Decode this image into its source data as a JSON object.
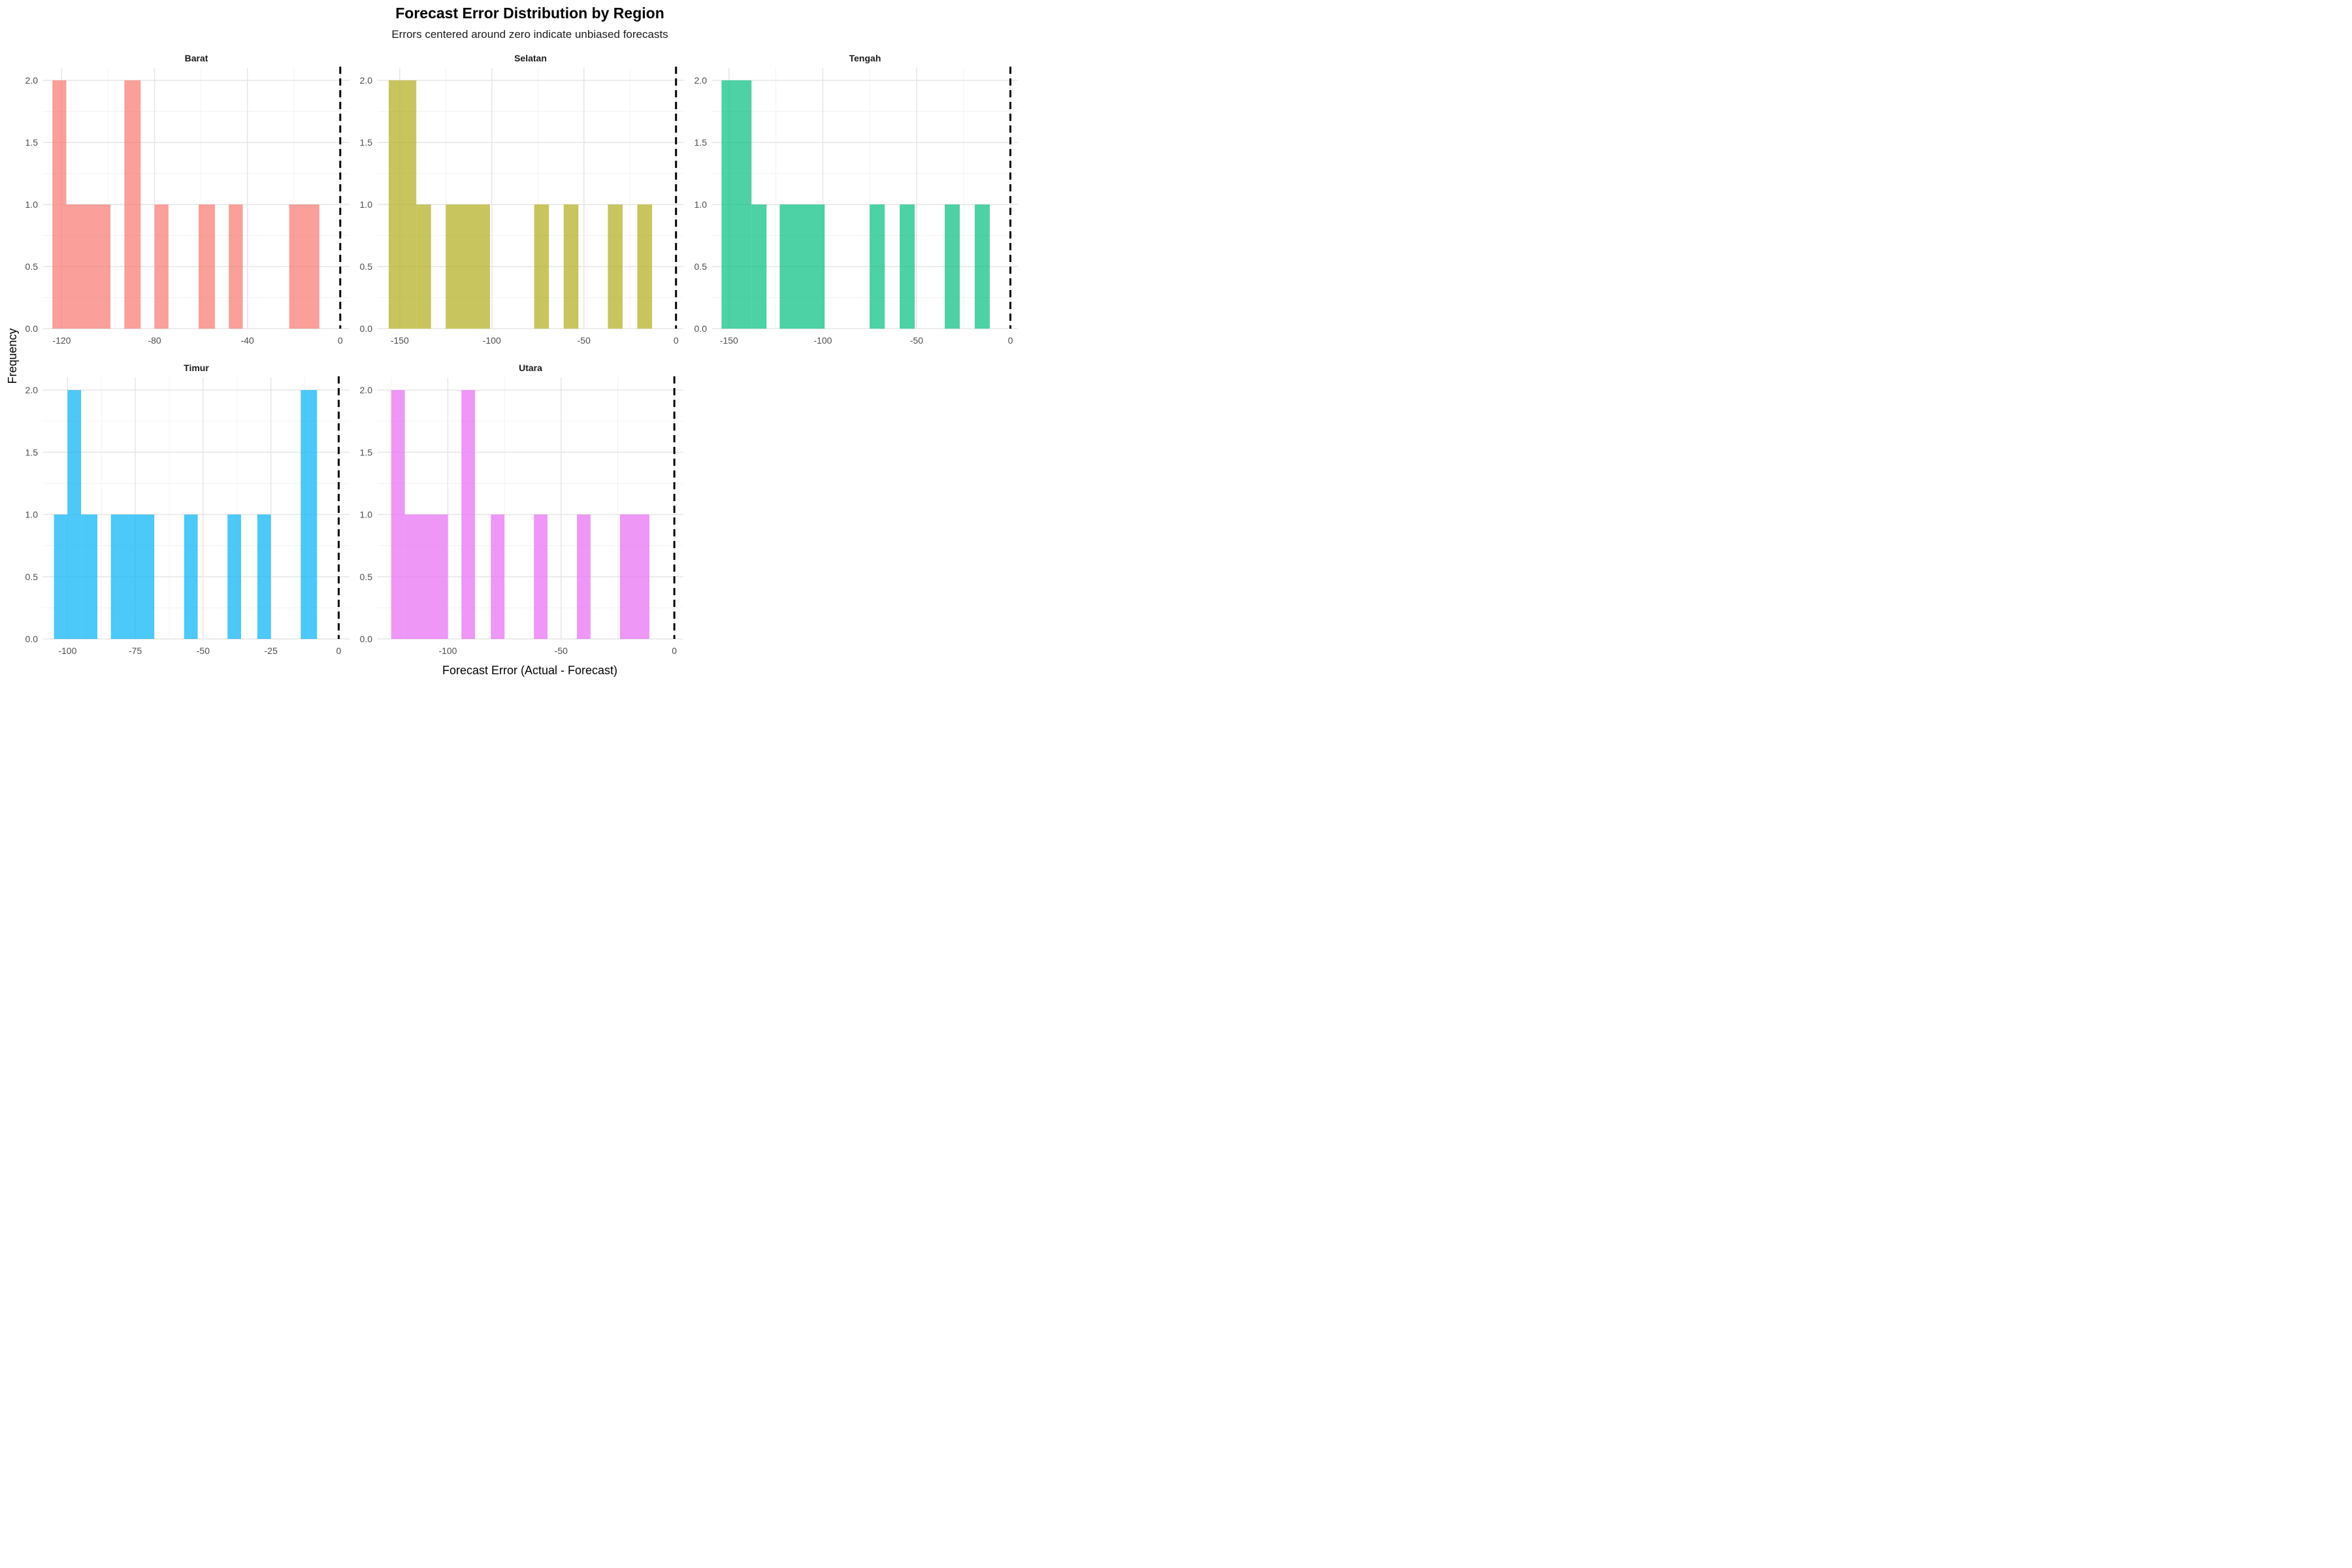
{
  "header": {
    "title": "Forecast Error Distribution by Region",
    "subtitle": "Errors centered around zero indicate unbiased forecasts"
  },
  "chart_data": {
    "type": "bar",
    "variant": "faceted-histogram",
    "title": "Forecast Error Distribution by Region",
    "subtitle": "Errors centered around zero indicate unbiased forecasts",
    "xlabel": "Forecast Error (Actual - Forecast)",
    "ylabel": "Frequency",
    "ylim": [
      0,
      2.1
    ],
    "y_ticks": [
      0.0,
      0.5,
      1.0,
      1.5,
      2.0
    ],
    "reference_line": {
      "x": 0,
      "style": "dashed",
      "color": "#000000"
    },
    "grid": true,
    "legend": "none",
    "panels": [
      {
        "name": "Barat",
        "color": "#F8766D",
        "xlim": [
          -128,
          4
        ],
        "x_ticks": [
          -120,
          -80,
          -40,
          0
        ],
        "x_minor": [
          -100,
          -60,
          -20
        ],
        "bins": [
          {
            "x0": -124,
            "x1": -118,
            "count": 2
          },
          {
            "x0": -118,
            "x1": -99,
            "count": 1
          },
          {
            "x0": -93,
            "x1": -86,
            "count": 2
          },
          {
            "x0": -80,
            "x1": -74,
            "count": 1
          },
          {
            "x0": -61,
            "x1": -54,
            "count": 1
          },
          {
            "x0": -48,
            "x1": -42,
            "count": 1
          },
          {
            "x0": -22,
            "x1": -9,
            "count": 1
          }
        ]
      },
      {
        "name": "Selatan",
        "color": "#B2AD1A",
        "xlim": [
          -162,
          4
        ],
        "x_ticks": [
          -150,
          -100,
          -50,
          0
        ],
        "x_minor": [
          -125,
          -75,
          -25
        ],
        "bins": [
          {
            "x0": -156,
            "x1": -141,
            "count": 2
          },
          {
            "x0": -141,
            "x1": -133,
            "count": 1
          },
          {
            "x0": -125,
            "x1": -101,
            "count": 1
          },
          {
            "x0": -77,
            "x1": -69,
            "count": 1
          },
          {
            "x0": -61,
            "x1": -53,
            "count": 1
          },
          {
            "x0": -37,
            "x1": -29,
            "count": 1
          },
          {
            "x0": -21,
            "x1": -13,
            "count": 1
          }
        ]
      },
      {
        "name": "Tengah",
        "color": "#00BF7D",
        "xlim": [
          -159,
          4
        ],
        "x_ticks": [
          -150,
          -100,
          -50,
          0
        ],
        "x_minor": [
          -125,
          -75,
          -25
        ],
        "bins": [
          {
            "x0": -154,
            "x1": -138,
            "count": 2
          },
          {
            "x0": -138,
            "x1": -130,
            "count": 1
          },
          {
            "x0": -123,
            "x1": -99,
            "count": 1
          },
          {
            "x0": -75,
            "x1": -67,
            "count": 1
          },
          {
            "x0": -59,
            "x1": -51,
            "count": 1
          },
          {
            "x0": -35,
            "x1": -27,
            "count": 1
          },
          {
            "x0": -19,
            "x1": -11,
            "count": 1
          }
        ]
      },
      {
        "name": "Timur",
        "color": "#00B0F6",
        "xlim": [
          -109,
          4
        ],
        "x_ticks": [
          -100,
          -75,
          -50,
          -25,
          0
        ],
        "x_minor": [
          -87.5,
          -62.5,
          -37.5,
          -12.5
        ],
        "bins": [
          {
            "x0": -105,
            "x1": -100,
            "count": 1
          },
          {
            "x0": -100,
            "x1": -95,
            "count": 2
          },
          {
            "x0": -95,
            "x1": -89,
            "count": 1
          },
          {
            "x0": -84,
            "x1": -68,
            "count": 1
          },
          {
            "x0": -57,
            "x1": -52,
            "count": 1
          },
          {
            "x0": -41,
            "x1": -36,
            "count": 1
          },
          {
            "x0": -30,
            "x1": -25,
            "count": 1
          },
          {
            "x0": -14,
            "x1": -8,
            "count": 2
          }
        ]
      },
      {
        "name": "Utara",
        "color": "#E76BF3",
        "xlim": [
          -131,
          4
        ],
        "x_ticks": [
          -100,
          -50,
          0
        ],
        "x_minor": [
          -125,
          -75,
          -25
        ],
        "bins": [
          {
            "x0": -125,
            "x1": -119,
            "count": 2
          },
          {
            "x0": -119,
            "x1": -100,
            "count": 1
          },
          {
            "x0": -94,
            "x1": -88,
            "count": 2
          },
          {
            "x0": -81,
            "x1": -75,
            "count": 1
          },
          {
            "x0": -62,
            "x1": -56,
            "count": 1
          },
          {
            "x0": -43,
            "x1": -37,
            "count": 1
          },
          {
            "x0": -24,
            "x1": -11,
            "count": 1
          }
        ]
      }
    ]
  }
}
